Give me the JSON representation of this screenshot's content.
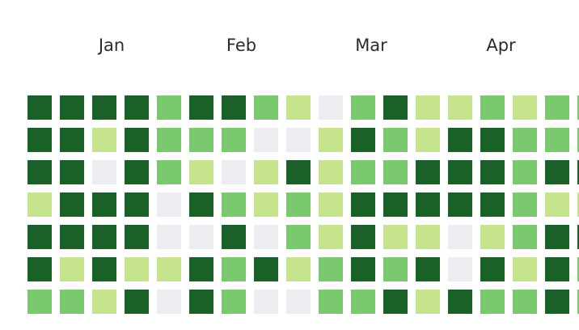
{
  "chart_data": {
    "type": "heatmap",
    "months": [
      "Jan",
      "Feb",
      "Mar",
      "Apr"
    ],
    "colors": [
      "#ebedf0",
      "#c6e48b",
      "#7bc96f",
      "#196127"
    ],
    "values": [
      [
        3,
        3,
        3,
        3,
        2,
        3,
        3,
        2,
        1,
        0,
        2,
        3,
        1,
        1,
        2,
        1,
        2,
        2
      ],
      [
        3,
        3,
        1,
        3,
        2,
        2,
        2,
        0,
        0,
        1,
        3,
        2,
        1,
        3,
        3,
        2,
        2,
        2
      ],
      [
        3,
        3,
        0,
        3,
        2,
        1,
        0,
        1,
        3,
        1,
        2,
        2,
        3,
        3,
        3,
        2,
        3,
        3
      ],
      [
        1,
        3,
        3,
        3,
        0,
        3,
        2,
        1,
        2,
        1,
        3,
        3,
        3,
        3,
        3,
        2,
        1,
        1
      ],
      [
        3,
        3,
        3,
        3,
        0,
        0,
        3,
        0,
        2,
        1,
        3,
        1,
        1,
        0,
        1,
        2,
        3,
        3
      ],
      [
        3,
        1,
        3,
        1,
        1,
        3,
        2,
        3,
        1,
        2,
        3,
        2,
        3,
        0,
        3,
        1,
        3,
        2
      ],
      [
        2,
        2,
        1,
        3,
        0,
        3,
        2,
        0,
        0,
        2,
        2,
        3,
        1,
        3,
        2,
        2,
        3,
        2
      ]
    ]
  }
}
